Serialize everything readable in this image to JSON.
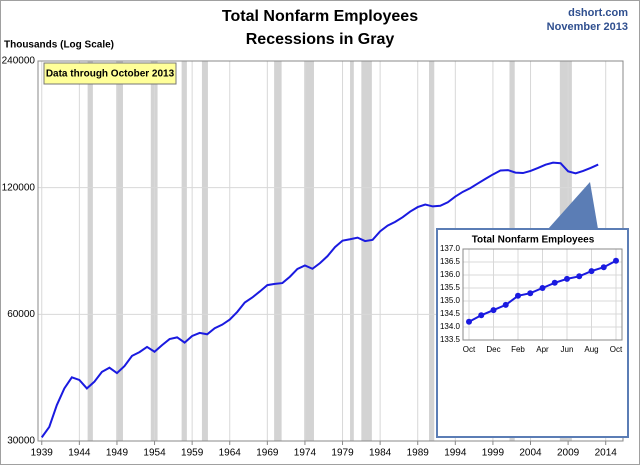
{
  "chart_data": [
    {
      "type": "line",
      "title": "Total Nonfarm Employees",
      "subtitle": "Recessions in Gray",
      "source": "dshort.com",
      "date": "November 2013",
      "y_label": "Thousands (Log Scale)",
      "annotation": "Data through October 2013",
      "log_scale": true,
      "grid": true,
      "xlim": [
        1938.5,
        2016.3
      ],
      "xticks": [
        1939,
        1944,
        1949,
        1954,
        1959,
        1964,
        1969,
        1974,
        1979,
        1984,
        1989,
        1994,
        1999,
        2004,
        2009,
        2014
      ],
      "ylim": [
        30000,
        240000
      ],
      "yticks": [
        30000,
        60000,
        120000,
        240000
      ],
      "recession_color": "#d3d3d3",
      "recessions": [
        [
          1945.1,
          1945.8
        ],
        [
          1948.9,
          1949.8
        ],
        [
          1953.5,
          1954.4
        ],
        [
          1957.6,
          1958.3
        ],
        [
          1960.3,
          1961.1
        ],
        [
          1969.9,
          1970.9
        ],
        [
          1973.9,
          1975.2
        ],
        [
          1980.0,
          1980.5
        ],
        [
          1981.5,
          1982.9
        ],
        [
          1990.5,
          1991.2
        ],
        [
          2001.2,
          2001.9
        ],
        [
          2007.9,
          2009.5
        ]
      ],
      "series": [
        {
          "name": "Total Nonfarm Employees",
          "color": "#1a1ae0",
          "x": [
            1939,
            1940,
            1941,
            1942,
            1943,
            1944,
            1945,
            1946,
            1947,
            1948,
            1949,
            1950,
            1951,
            1952,
            1953,
            1954,
            1955,
            1956,
            1957,
            1958,
            1959,
            1960,
            1961,
            1962,
            1963,
            1964,
            1965,
            1966,
            1967,
            1968,
            1969,
            1970,
            1971,
            1972,
            1973,
            1974,
            1975,
            1976,
            1977,
            1978,
            1979,
            1980,
            1981,
            1982,
            1983,
            1984,
            1985,
            1986,
            1987,
            1988,
            1989,
            1990,
            1991,
            1992,
            1993,
            1994,
            1995,
            1996,
            1997,
            1998,
            1999,
            2000,
            2001,
            2002,
            2003,
            2004,
            2005,
            2006,
            2007,
            2008,
            2009,
            2010,
            2011,
            2012,
            2013
          ],
          "values": [
            30600,
            32400,
            36500,
            40000,
            42500,
            41900,
            40000,
            41500,
            43800,
            44800,
            43500,
            45200,
            47800,
            48800,
            50200,
            48900,
            50700,
            52400,
            52900,
            51400,
            53300,
            54200,
            53800,
            55600,
            56700,
            58300,
            60800,
            64000,
            65800,
            68000,
            70400,
            70900,
            71200,
            73700,
            76900,
            78400,
            77000,
            79400,
            82500,
            86700,
            89800,
            90500,
            91300,
            89600,
            90200,
            94500,
            97500,
            99500,
            102100,
            105300,
            107900,
            109400,
            108300,
            108700,
            110800,
            114300,
            117300,
            119700,
            122800,
            125900,
            129000,
            131800,
            132100,
            130300,
            130000,
            131500,
            133700,
            136100,
            137600,
            137200,
            131200,
            129800,
            131500,
            133700,
            136200
          ]
        }
      ]
    },
    {
      "type": "line",
      "title": "Total Nonfarm Employees",
      "grid": true,
      "markers": true,
      "categories": [
        "Oct",
        null,
        "Dec",
        null,
        "Feb",
        null,
        "Apr",
        null,
        "Jun",
        null,
        "Aug",
        null,
        "Oct"
      ],
      "ylim": [
        133.5,
        137.0
      ],
      "yticks": [
        133.5,
        {
          "value": 134,
          "label": "134.0"
        },
        134.5,
        {
          "value": 135,
          "label": "135.0"
        },
        135.5,
        {
          "value": 136,
          "label": "136.0"
        },
        136.5,
        {
          "value": 137,
          "label": "137.0"
        }
      ],
      "series": [
        {
          "name": "Total Nonfarm Employees",
          "color": "#1a1ae0",
          "values": [
            134.2,
            134.45,
            134.65,
            134.85,
            135.2,
            135.3,
            135.5,
            135.7,
            135.85,
            135.95,
            136.15,
            136.3,
            136.55
          ]
        }
      ]
    }
  ]
}
